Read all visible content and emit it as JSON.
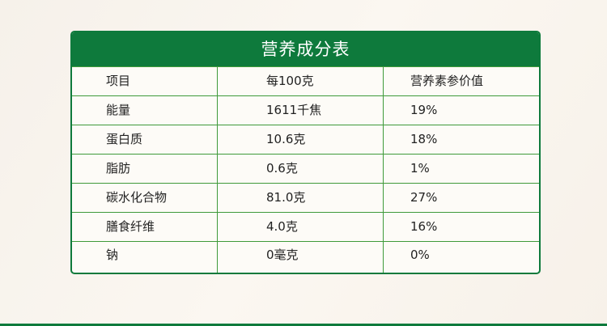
{
  "title": "营养成分表",
  "headers": [
    "项目",
    "每100克",
    "营养素参价值"
  ],
  "rows": [
    [
      "能量",
      "1611千焦",
      "19%"
    ],
    [
      "蛋白质",
      "10.6克",
      "18%"
    ],
    [
      "脂肪",
      "0.6克",
      "1%"
    ],
    [
      "碳水化合物",
      "81.0克",
      "27%"
    ],
    [
      "膳食纤维",
      "4.0克",
      "16%"
    ],
    [
      "钠",
      "0毫克",
      "0%"
    ]
  ],
  "colors": {
    "brand_green": "#0e7a3c",
    "grid_green": "#3f9a3a"
  }
}
